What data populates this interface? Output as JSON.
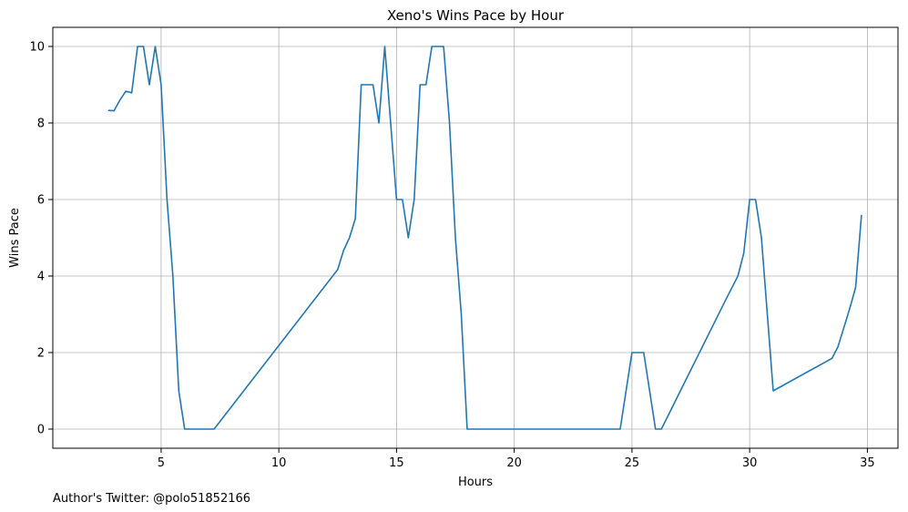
{
  "chart_data": {
    "type": "line",
    "title": "Xeno's Wins Pace by Hour",
    "xlabel": "Hours",
    "ylabel": "Wins Pace",
    "xlim": [
      0.4,
      36.3
    ],
    "ylim": [
      -0.5,
      10.5
    ],
    "xticks": [
      5,
      10,
      15,
      20,
      25,
      30,
      35
    ],
    "yticks": [
      0,
      2,
      4,
      6,
      8,
      10
    ],
    "grid": true,
    "line_color": "#1f77b4",
    "series": [
      {
        "x": [
          2.75,
          3.0,
          3.25,
          3.5,
          3.75,
          4.0,
          4.25,
          4.5,
          4.75,
          5.0,
          5.25,
          5.5,
          5.75,
          6.0,
          7.25,
          12.5,
          12.75,
          13.0,
          13.25,
          13.5,
          13.75,
          14.0,
          14.25,
          14.5,
          14.75,
          15.0,
          15.25,
          15.5,
          15.75,
          16.0,
          16.25,
          16.5,
          16.75,
          17.0,
          17.25,
          17.5,
          17.75,
          18.0,
          24.5,
          25.0,
          25.25,
          25.5,
          26.0,
          26.25,
          29.0,
          29.5,
          29.75,
          30.0,
          30.25,
          30.5,
          31.0,
          33.5,
          33.75,
          34.0,
          34.25,
          34.5,
          34.75
        ],
        "y": [
          8.33,
          8.32,
          8.6,
          8.83,
          8.79,
          10.0,
          10.0,
          9.0,
          10.0,
          9.0,
          6.0,
          4.0,
          1.0,
          0.0,
          0.0,
          4.17,
          4.67,
          5.0,
          5.5,
          9.0,
          9.0,
          9.0,
          8.0,
          10.0,
          8.0,
          6.0,
          6.0,
          5.0,
          6.0,
          9.0,
          9.0,
          10.0,
          10.0,
          10.0,
          8.0,
          5.0,
          3.0,
          0.0,
          0.0,
          2.0,
          2.0,
          2.0,
          0.0,
          0.0,
          3.4,
          4.0,
          4.6,
          6.0,
          6.0,
          5.0,
          1.0,
          1.85,
          2.15,
          2.65,
          3.15,
          3.7,
          5.6
        ]
      }
    ]
  },
  "footer": {
    "credit": "Author's Twitter: @polo51852166"
  }
}
